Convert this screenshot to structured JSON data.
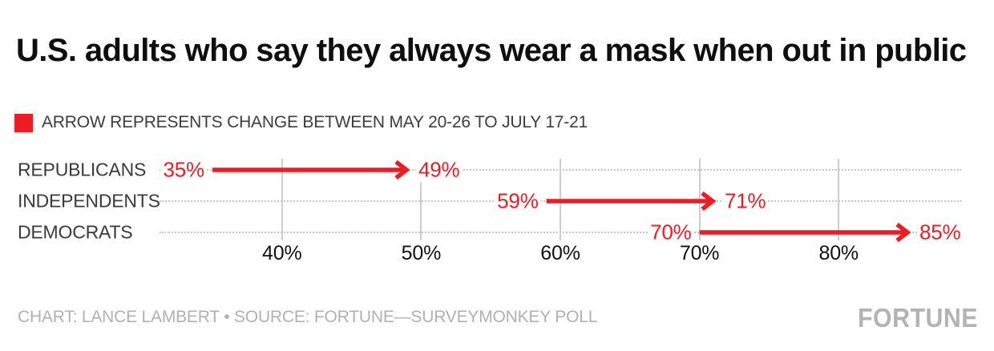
{
  "title": "U.S. adults who say they always wear a mask when out in public",
  "legend": {
    "swatch_color": "#ED1C24",
    "label": "ARROW REPRESENTS CHANGE BETWEEN MAY 20-26 TO JULY 17-21"
  },
  "chart_data": {
    "type": "arrow",
    "title": "U.S. adults who say they always wear a mask when out in public",
    "categories": [
      "REPUBLICANS",
      "INDEPENDENTS",
      "DEMOCRATS"
    ],
    "series": [
      {
        "name": "MAY 20-26",
        "values": [
          35,
          59,
          70
        ]
      },
      {
        "name": "JULY 17-21",
        "values": [
          49,
          71,
          85
        ]
      }
    ],
    "value_labels": {
      "start": [
        "35%",
        "59%",
        "70%"
      ],
      "end": [
        "49%",
        "71%",
        "85%"
      ]
    },
    "axis": {
      "min": 31.2,
      "max": 88.8,
      "ticks": [
        40,
        50,
        60,
        70,
        80
      ],
      "tick_labels": [
        "40%",
        "50%",
        "60%",
        "70%",
        "80%"
      ],
      "unit": "%",
      "orientation": "horizontal",
      "grid": true,
      "row_guides": "dotted"
    }
  },
  "footer": {
    "credit": "CHART: LANCE LAMBERT • SOURCE: FORTUNE—SURVEYMONKEY POLL",
    "logo": "FORTUNE"
  },
  "colors": {
    "accent": "#ED1C24",
    "gridline": "#cdcdcd",
    "dotted_guide": "#c6c6c6",
    "category_text": "#3a3a3a",
    "footer_text": "#b1b1b1",
    "logo_text": "#b3b3b3"
  }
}
